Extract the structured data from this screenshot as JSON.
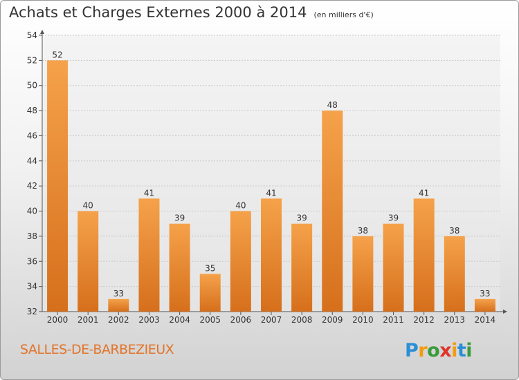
{
  "chart_data": {
    "type": "bar",
    "title": "Achats et Charges Externes 2000 à 2014",
    "subtitle": "(en milliers d'€)",
    "categories": [
      "2000",
      "2001",
      "2002",
      "2003",
      "2004",
      "2005",
      "2006",
      "2007",
      "2008",
      "2009",
      "2010",
      "2011",
      "2012",
      "2013",
      "2014"
    ],
    "values": [
      52,
      40,
      33,
      41,
      39,
      35,
      40,
      41,
      39,
      48,
      38,
      39,
      41,
      38,
      33
    ],
    "ylim": [
      32,
      54
    ],
    "yticks": [
      32,
      34,
      36,
      38,
      40,
      42,
      44,
      46,
      48,
      50,
      52,
      54
    ],
    "grid": true,
    "data_labels": true,
    "bar_color": "#f19a3c",
    "bar_color_dark": "#d9741f"
  },
  "footer": {
    "town": "SALLES-DE-BARBEZIEUX",
    "brand": "Proxiti",
    "town_color": "#e2752a"
  }
}
